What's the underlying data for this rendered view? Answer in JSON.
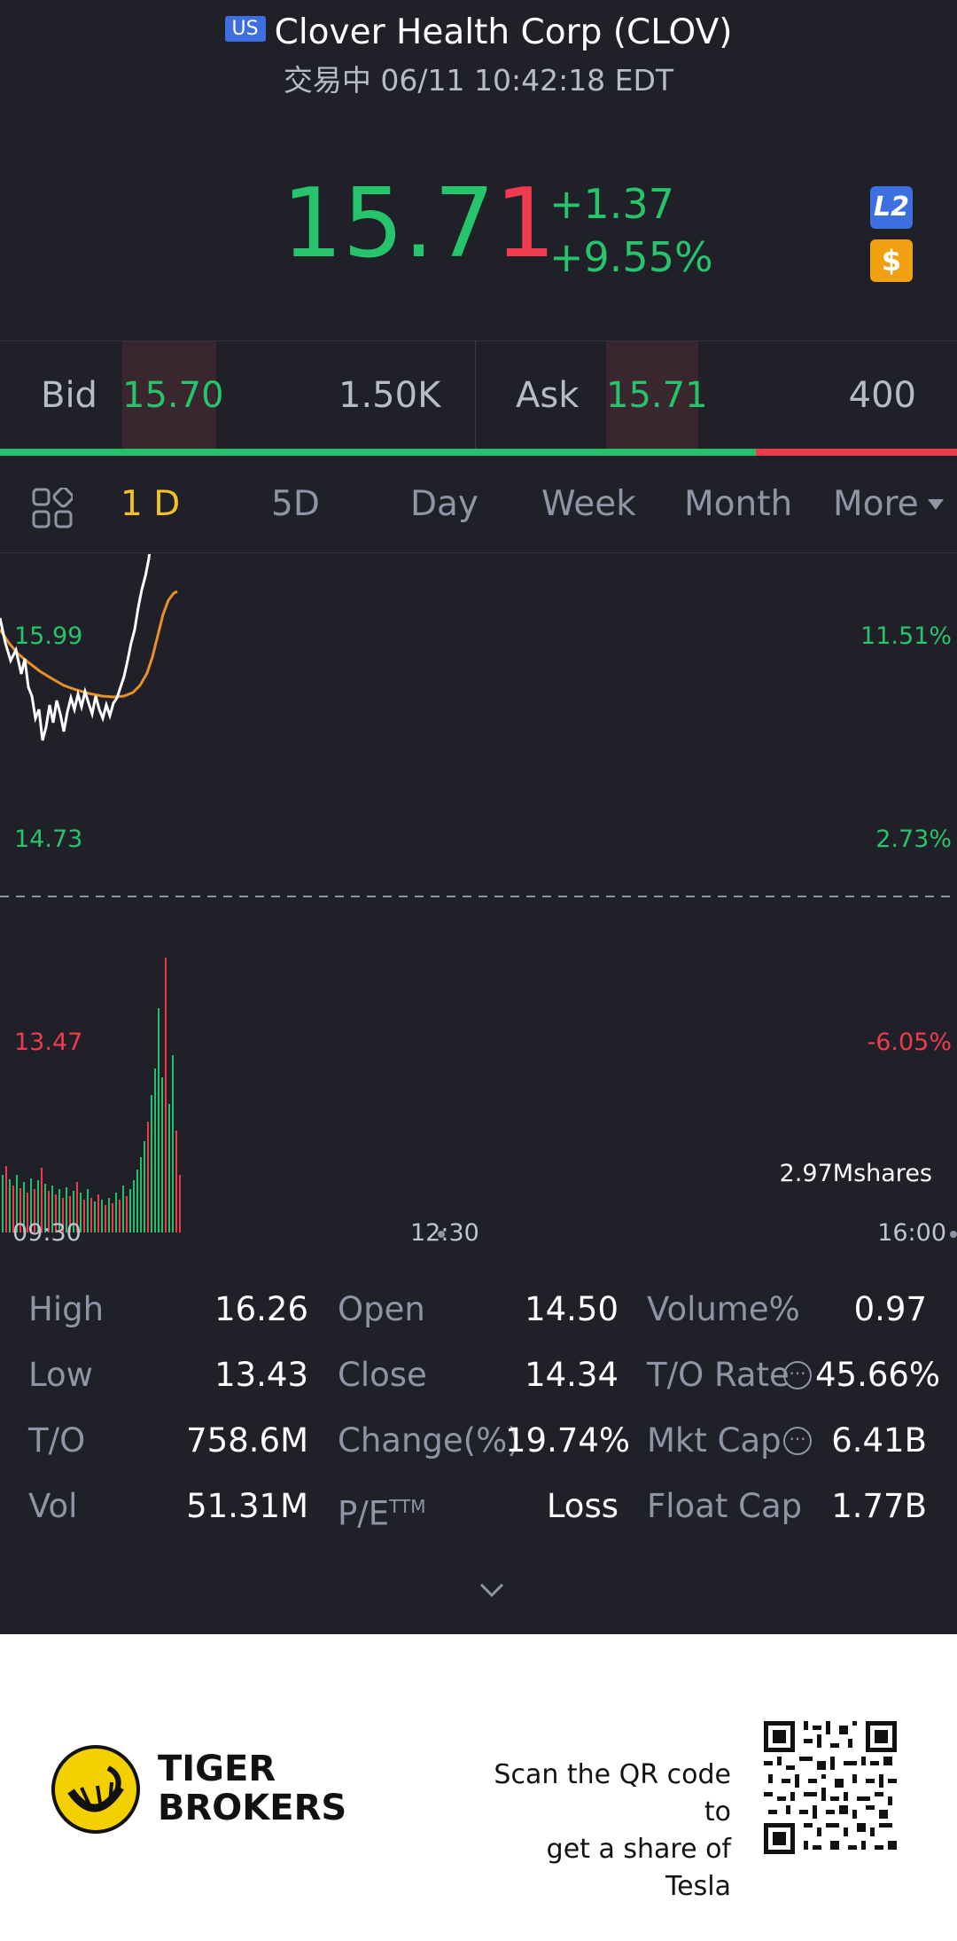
{
  "header": {
    "market_badge": "US",
    "title": "Clover Health Corp (CLOV)",
    "subtitle": "交易中 06/11 10:42:18 EDT",
    "price_main": "15.7",
    "price_last_digit": "1",
    "change": "+1.37",
    "change_pct": "+9.55%",
    "l2_badge": "L2",
    "dollar_badge": "$"
  },
  "bid_ask": {
    "bid_label": "Bid",
    "bid_price": "15.70",
    "bid_size": "1.50K",
    "ask_label": "Ask",
    "ask_price": "15.71",
    "ask_size": "400",
    "bid_ratio": 0.79
  },
  "tabs": [
    {
      "label": "1 D",
      "active": true
    },
    {
      "label": "5D"
    },
    {
      "label": "Day"
    },
    {
      "label": "Week"
    },
    {
      "label": "Month"
    },
    {
      "label": "More"
    }
  ],
  "chart": {
    "price_high": "15.99",
    "price_mid": "14.73",
    "price_low": "13.47",
    "pct_high": "11.51%",
    "pct_mid": "2.73%",
    "pct_low": "-6.05%",
    "volume_label": "2.97Mshares",
    "time_start": "09:30",
    "time_mid": "12:30",
    "time_end": "16:00"
  },
  "stats": {
    "high_label": "High",
    "high": "16.26",
    "low_label": "Low",
    "low": "13.43",
    "to_label": "T/O",
    "to": "758.6M",
    "vol_label": "Vol",
    "vol": "51.31M",
    "open_label": "Open",
    "open": "14.50",
    "close_label": "Close",
    "close": "14.34",
    "change_pct_label": "Change(%)",
    "change_pct": "19.74%",
    "pe_label": "P/E",
    "pe_sup": "TTM",
    "pe": "Loss",
    "volume_pct_label": "Volume%",
    "volume_pct": "0.97",
    "to_rate_label": "T/O Rate",
    "to_rate": "45.66%",
    "mkt_cap_label": "Mkt Cap",
    "mkt_cap": "6.41B",
    "float_cap_label": "Float Cap",
    "float_cap": "1.77B"
  },
  "footer": {
    "brand_line1": "TIGER",
    "brand_line2": "BROKERS",
    "scan_line1": "Scan the QR code to",
    "scan_line2": "get a share of Tesla"
  },
  "colors": {
    "up": "#26c46b",
    "down": "#f03a4e",
    "active_tab": "#f5c022",
    "background": "#202029"
  }
}
